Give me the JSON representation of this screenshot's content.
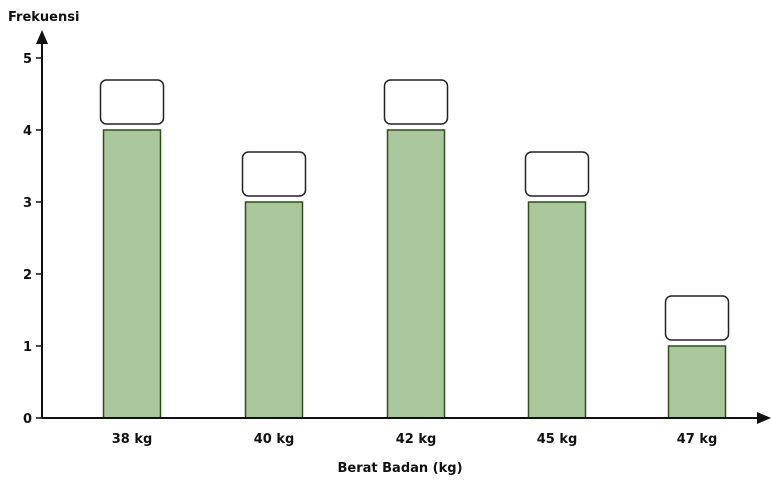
{
  "chart_data": {
    "type": "bar",
    "categories": [
      "38 kg",
      "40 kg",
      "42 kg",
      "45 kg",
      "47 kg"
    ],
    "values": [
      4,
      3,
      4,
      3,
      1
    ],
    "title": "",
    "xlabel": "Berat Badan (kg)",
    "ylabel": "Frekuensi",
    "ylim": [
      0,
      5
    ],
    "yticks": [
      0,
      1,
      2,
      3,
      4,
      5
    ],
    "grid": false,
    "legend": "none",
    "data_labels": "empty boxes above each bar",
    "colors": {
      "bar_fill": "#a9c79a",
      "bar_stroke": "#2f4f1f",
      "axis": "#111111",
      "background": "#ffffff"
    }
  }
}
